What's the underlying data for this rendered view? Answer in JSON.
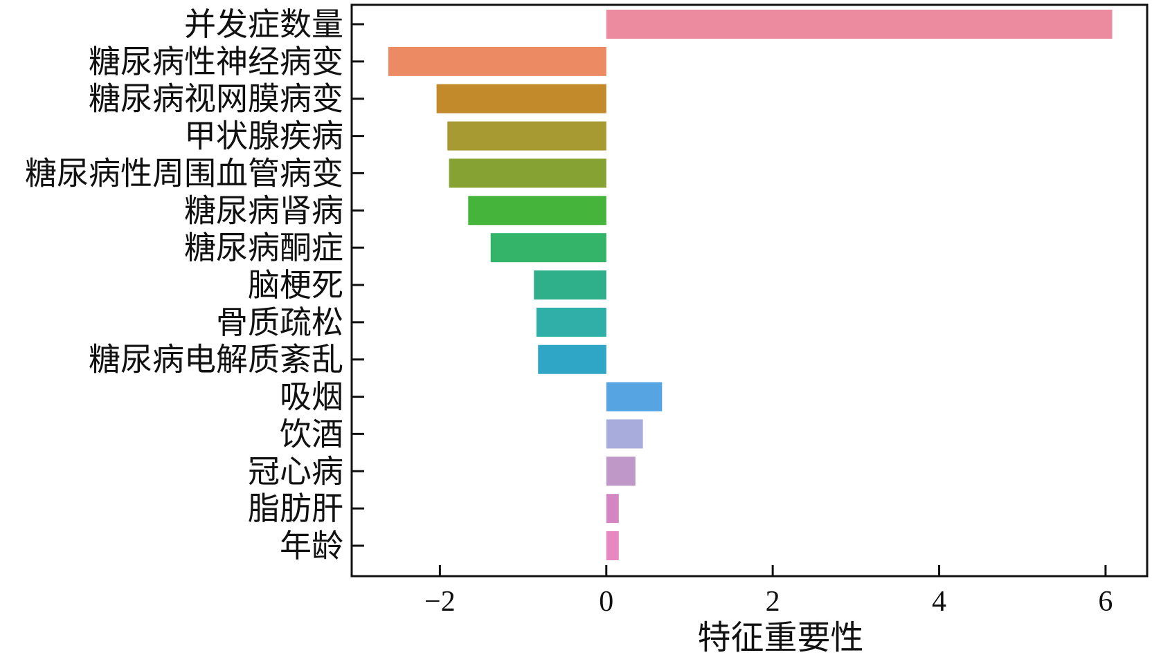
{
  "chart_data": {
    "type": "bar",
    "orientation": "horizontal",
    "title": "",
    "xlabel": "特征重要性",
    "ylabel": "",
    "xlim": [
      -3.06,
      6.5
    ],
    "xticks": [
      -2,
      0,
      2,
      4,
      6
    ],
    "xtick_labels": [
      "−2",
      "0",
      "2",
      "4",
      "6"
    ],
    "grid": false,
    "legend": "none",
    "categories": [
      "并发症数量",
      "糖尿病性神经病变",
      "糖尿病视网膜病变",
      "甲状腺疾病",
      "糖尿病性周围血管病变",
      "糖尿病肾病",
      "糖尿病酮症",
      "脑梗死",
      "骨质疏松",
      "糖尿病电解质紊乱",
      "吸烟",
      "饮酒",
      "冠心病",
      "脂肪肝",
      "年龄"
    ],
    "values": [
      6.08,
      -2.62,
      -2.04,
      -1.91,
      -1.89,
      -1.66,
      -1.39,
      -0.87,
      -0.84,
      -0.82,
      0.67,
      0.44,
      0.35,
      0.15,
      0.15
    ],
    "colors": [
      "#ec8aa0",
      "#ec8a64",
      "#c28a2a",
      "#a89a32",
      "#86a232",
      "#44b43a",
      "#34b468",
      "#2fb08a",
      "#30afa8",
      "#30a6c6",
      "#56a4e2",
      "#a8acdc",
      "#c098c8",
      "#d486c2",
      "#e888c0"
    ]
  }
}
